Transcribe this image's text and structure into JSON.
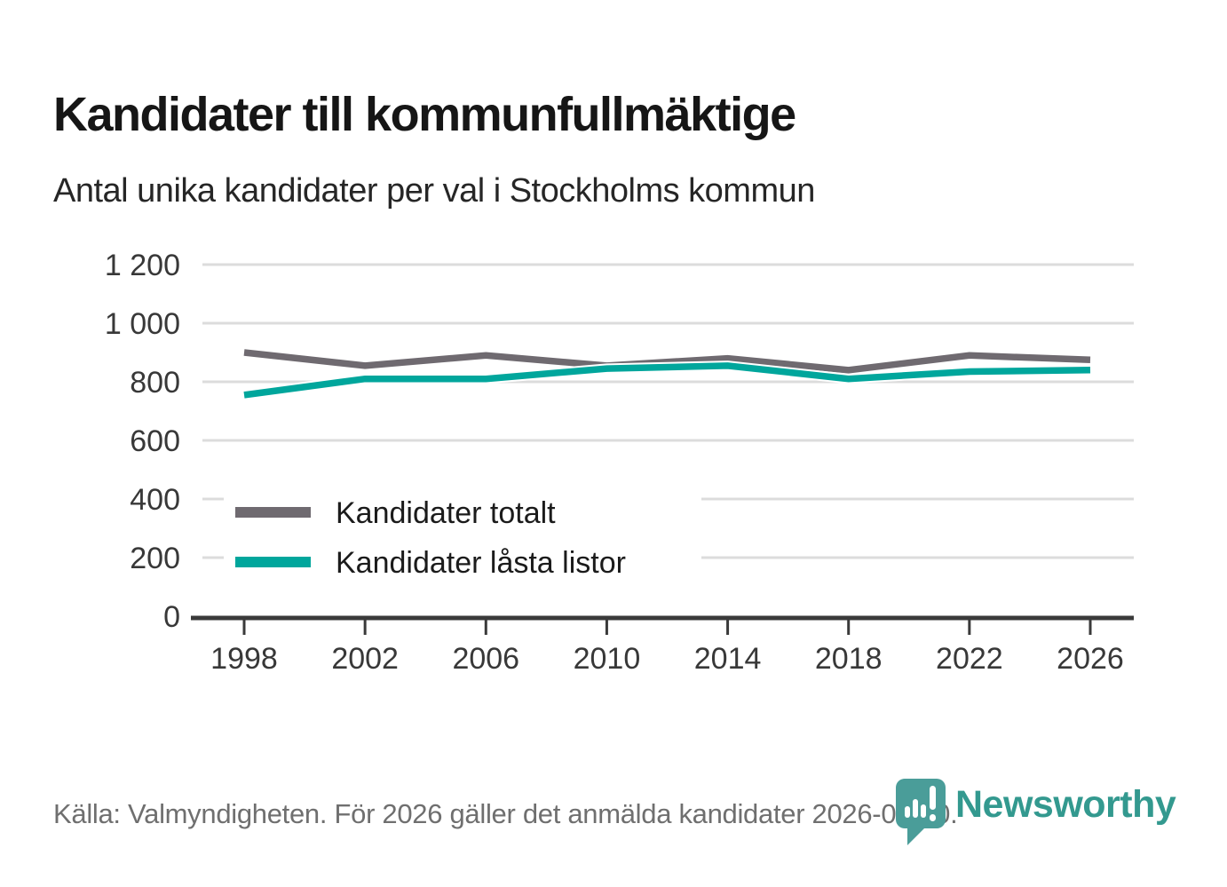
{
  "header": {
    "title": "Kandidater till kommunfullmäktige",
    "subtitle": "Antal unika kandidater per val i Stockholms kommun"
  },
  "footer": {
    "source": "Källa: Valmyndigheten. För 2026 gäller det anmälda kandidater 2026-04-10.",
    "brand": "Newsworthy"
  },
  "colors": {
    "total_line": "#6f6a70",
    "locked_line": "#00a69c",
    "axis_text": "#383838",
    "gridline": "#dcdcdc",
    "axis_line": "#3a3a3a",
    "legend_text": "#1b1b1b",
    "brand_teal": "#4a9d99"
  },
  "chart_data": {
    "type": "line",
    "x": [
      1998,
      2002,
      2006,
      2010,
      2014,
      2018,
      2022,
      2026
    ],
    "series": [
      {
        "name": "Kandidater totalt",
        "color_key": "total_line",
        "values": [
          900,
          855,
          890,
          855,
          880,
          840,
          890,
          875
        ]
      },
      {
        "name": "Kandidater låsta listor",
        "color_key": "locked_line",
        "values": [
          755,
          810,
          810,
          845,
          855,
          810,
          835,
          840
        ]
      }
    ],
    "ylim": [
      0,
      1200
    ],
    "yticks": [
      0,
      200,
      400,
      600,
      800,
      1000,
      1200
    ],
    "ytick_labels": [
      "0",
      "200",
      "400",
      "600",
      "800",
      "1 000",
      "1 200"
    ],
    "xtick_labels": [
      "1998",
      "2002",
      "2006",
      "2010",
      "2014",
      "2018",
      "2022",
      "2026"
    ],
    "grid": true,
    "legend_position": "inside-left-bottom"
  }
}
